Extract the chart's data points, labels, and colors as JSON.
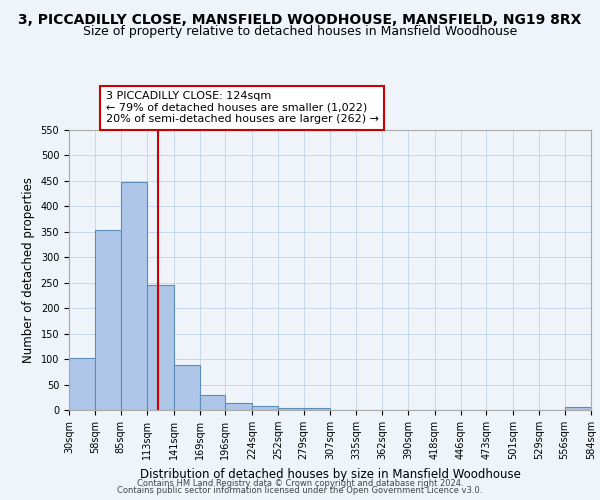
{
  "title": "3, PICCADILLY CLOSE, MANSFIELD WOODHOUSE, MANSFIELD, NG19 8RX",
  "subtitle": "Size of property relative to detached houses in Mansfield Woodhouse",
  "xlabel": "Distribution of detached houses by size in Mansfield Woodhouse",
  "ylabel": "Number of detached properties",
  "bar_edges": [
    30,
    58,
    85,
    113,
    141,
    169,
    196,
    224,
    252,
    279,
    307,
    335,
    362,
    390,
    418,
    446,
    473,
    501,
    529,
    556,
    584
  ],
  "bar_heights": [
    103,
    353,
    447,
    246,
    88,
    30,
    14,
    8,
    4,
    4,
    0,
    0,
    0,
    0,
    0,
    0,
    0,
    0,
    0,
    5
  ],
  "tick_labels": [
    "30sqm",
    "58sqm",
    "85sqm",
    "113sqm",
    "141sqm",
    "169sqm",
    "196sqm",
    "224sqm",
    "252sqm",
    "279sqm",
    "307sqm",
    "335sqm",
    "362sqm",
    "390sqm",
    "418sqm",
    "446sqm",
    "473sqm",
    "501sqm",
    "529sqm",
    "556sqm",
    "584sqm"
  ],
  "bar_color": "#aec6e8",
  "bar_edge_color": "#5b8db8",
  "grid_color": "#c8d8e8",
  "background_color": "#eef4fa",
  "vline_x": 124,
  "vline_color": "#cc0000",
  "ylim": [
    0,
    550
  ],
  "yticks": [
    0,
    50,
    100,
    150,
    200,
    250,
    300,
    350,
    400,
    450,
    500,
    550
  ],
  "annotation_box_text": "3 PICCADILLY CLOSE: 124sqm\n← 79% of detached houses are smaller (1,022)\n20% of semi-detached houses are larger (262) →",
  "footer_line1": "Contains HM Land Registry data © Crown copyright and database right 2024.",
  "footer_line2": "Contains public sector information licensed under the Open Government Licence v3.0.",
  "title_fontsize": 10,
  "subtitle_fontsize": 9,
  "axis_label_fontsize": 8.5,
  "tick_fontsize": 7,
  "annotation_fontsize": 8,
  "footer_fontsize": 6
}
